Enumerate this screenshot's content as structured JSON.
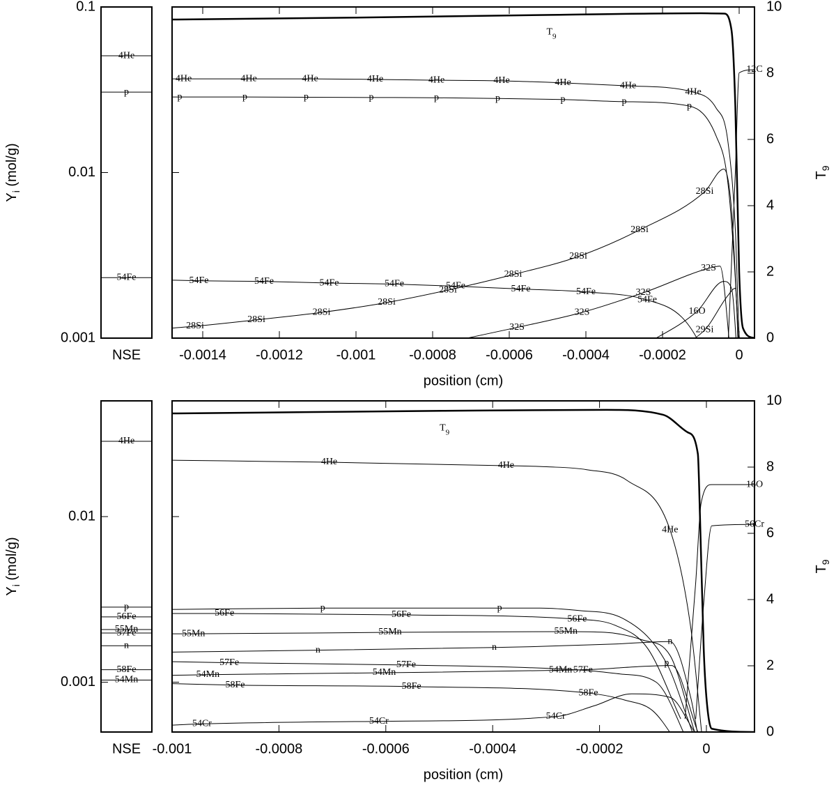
{
  "chart_data": [
    {
      "type": "line",
      "yscale": "log",
      "color": "#000000",
      "ylabel": [
        "Y",
        "i",
        " (mol/g)"
      ],
      "y2label": [
        "T",
        "9"
      ],
      "xlabel": "position (cm)",
      "xlim": [
        -0.00148,
        4e-05
      ],
      "xticks": [
        -0.0014,
        -0.0012,
        -0.001,
        -0.0008,
        -0.0006,
        -0.0004,
        -0.0002,
        0
      ],
      "ylim": [
        0.001,
        0.1
      ],
      "yticks": [
        0.001,
        0.01,
        0.1
      ],
      "y2lim": [
        0,
        10
      ],
      "y2ticks": [
        0,
        2,
        4,
        6,
        8,
        10
      ],
      "nse": {
        "label": "NSE",
        "species": [
          {
            "name": "4He",
            "value": 0.0507
          },
          {
            "name": "p",
            "value": 0.0306
          },
          {
            "name": "54Fe",
            "value": 0.00232
          }
        ]
      },
      "series": [
        {
          "name": [
            "T",
            "9"
          ],
          "axis": "y2",
          "x": [
            -0.00148,
            -0.001,
            -0.00049,
            -0.0001,
            -4e-05,
            -2e-05,
            -1e-05,
            0,
            1e-05,
            4e-05
          ],
          "values": [
            9.62,
            9.68,
            9.76,
            9.81,
            9.8,
            9.3,
            7,
            2,
            0.3,
            0
          ]
        },
        {
          "name": "4He",
          "x": [
            -0.00148,
            -0.00145,
            -0.00128,
            -0.00112,
            -0.00095,
            -0.00079,
            -0.00062,
            -0.00046,
            -0.00029,
            -0.00012,
            -6e-05,
            -3e-05,
            -1e-05,
            0,
            2e-05
          ],
          "values": [
            0.0368,
            0.0368,
            0.0368,
            0.0368,
            0.0365,
            0.0361,
            0.0358,
            0.0348,
            0.0334,
            0.0306,
            0.0245,
            0.0158,
            0.0045,
            0.00105,
            0.0005
          ]
        },
        {
          "name": "p",
          "x": [
            -0.00148,
            -0.00146,
            -0.00129,
            -0.00113,
            -0.00096,
            -0.00079,
            -0.00063,
            -0.00046,
            -0.0003,
            -0.00013,
            -6e-05,
            -3e-05,
            -1e-05,
            0
          ],
          "values": [
            0.0286,
            0.0286,
            0.0286,
            0.0285,
            0.0284,
            0.0283,
            0.028,
            0.0276,
            0.0268,
            0.0252,
            0.0166,
            0.0089,
            0.00228,
            0.0008
          ]
        },
        {
          "name": "54Fe",
          "x": [
            -0.00148,
            -0.00141,
            -0.00124,
            -0.00107,
            -0.0009,
            -0.00074,
            -0.00057,
            -0.0004,
            -0.00024,
            -0.00015,
            -0.0001,
            -7e-05
          ],
          "values": [
            0.00224,
            0.00222,
            0.0022,
            0.00215,
            0.00212,
            0.00206,
            0.00198,
            0.0019,
            0.0017,
            0.00134,
            0.0009,
            0.0006
          ]
        },
        {
          "name": "28Si",
          "x": [
            -0.00148,
            -0.00142,
            -0.00126,
            -0.00109,
            -0.00092,
            -0.00076,
            -0.00059,
            -0.00042,
            -0.00026,
            -9e-05,
            -4e-05,
            -2e-05,
            0
          ],
          "values": [
            0.00115,
            0.00118,
            0.00129,
            0.00143,
            0.00164,
            0.00195,
            0.00242,
            0.00311,
            0.0045,
            0.00766,
            0.0105,
            0.006,
            0.0008
          ]
        },
        {
          "name": "32S",
          "x": [
            -0.00071,
            -0.00058,
            -0.00041,
            -0.00025,
            -8e-05,
            -5e-05,
            -2e-05
          ],
          "values": [
            0.001,
            0.00116,
            0.00143,
            0.00188,
            0.00264,
            0.00272,
            0.0007
          ]
        },
        {
          "name": "12C",
          "x": [
            -3e-05,
            -1e-05,
            0,
            4e-05
          ],
          "values": [
            0.0008,
            0.01,
            0.04,
            0.0418
          ]
        },
        {
          "name": "16O",
          "x": [
            -0.00025,
            -0.00011,
            -4e-05,
            -2e-05,
            0
          ],
          "values": [
            0.0009,
            0.00145,
            0.0022,
            0.002,
            0.0005
          ]
        },
        {
          "name": "29Si",
          "x": [
            -0.0002,
            -9e-05,
            -3e-05,
            -1e-05,
            0
          ],
          "values": [
            0.0008,
            0.00112,
            0.0018,
            0.002,
            0.0006
          ]
        }
      ]
    },
    {
      "type": "line",
      "yscale": "log",
      "color": "#000000",
      "ylabel": [
        "Y",
        "i",
        " (mol/g)"
      ],
      "y2label": [
        "T",
        "9"
      ],
      "xlabel": "position (cm)",
      "xlim": [
        -0.001,
        9e-05
      ],
      "xticks": [
        -0.001,
        -0.0008,
        -0.0006,
        -0.0004,
        -0.0002,
        0
      ],
      "ylim": [
        0.0005,
        0.05
      ],
      "yticks": [
        0.001,
        0.01
      ],
      "y2lim": [
        0,
        10
      ],
      "y2ticks": [
        0,
        2,
        4,
        6,
        8,
        10
      ],
      "nse": {
        "label": "NSE",
        "species": [
          {
            "name": "4He",
            "value": 0.0285
          },
          {
            "name": "p",
            "value": 0.00284
          },
          {
            "name": "56Fe",
            "value": 0.00248
          },
          {
            "name": "55Mn",
            "value": 0.00208
          },
          {
            "name": "57Fe",
            "value": 0.00198
          },
          {
            "name": "n",
            "value": 0.00166
          },
          {
            "name": "58Fe",
            "value": 0.00119
          },
          {
            "name": "54Mn",
            "value": 0.00103
          }
        ]
      },
      "series": [
        {
          "name": [
            "T",
            "9"
          ],
          "axis": "y2",
          "x": [
            -0.001,
            -0.00075,
            -0.00049,
            -0.000186,
            -8.1e-05,
            -3.5e-05,
            -1.6e-05,
            -1.2e-05,
            -5e-06,
            0,
            1e-05,
            9e-05
          ],
          "values": [
            9.62,
            9.66,
            9.7,
            9.73,
            9.58,
            9.05,
            8.4,
            6.5,
            2.5,
            1.05,
            0.1,
            0
          ]
        },
        {
          "name": "4He",
          "x": [
            -0.001,
            -0.000706,
            -0.000375,
            -0.000299,
            -0.000224,
            -0.000148,
            -6.8e-05,
            -2.9e-05,
            -9e-06
          ],
          "values": [
            0.0219,
            0.0213,
            0.0203,
            0.02,
            0.0192,
            0.0165,
            0.0083,
            0.0021,
            0.0005
          ]
        },
        {
          "name": "p",
          "x": [
            -0.001,
            -0.000718,
            -0.000387,
            -0.000311,
            -0.000235,
            -0.000159,
            -7.45e-05,
            -3.5e-05,
            -1.6e-05
          ],
          "values": [
            0.00275,
            0.0028,
            0.0028,
            0.0028,
            0.0027,
            0.00245,
            0.0013,
            0.0006,
            0.0004
          ]
        },
        {
          "name": "56Fe",
          "x": [
            -0.001,
            -0.000902,
            -0.000571,
            -0.000242,
            -0.00017,
            -0.00011,
            -4.8e-05
          ],
          "values": [
            0.0026,
            0.0026,
            0.00255,
            0.0024,
            0.0022,
            0.0016,
            0.0006
          ]
        },
        {
          "name": "55Mn",
          "x": [
            -0.001,
            -0.00096,
            -0.000592,
            -0.000263,
            -0.00019,
            -0.00012,
            -6.8e-05,
            -2.2e-05
          ],
          "values": [
            0.00196,
            0.00196,
            0.002,
            0.00202,
            0.002,
            0.0018,
            0.00145,
            0.0005
          ]
        },
        {
          "name": "n",
          "x": [
            -0.001,
            -0.000727,
            -0.000397,
            -0.000322,
            -0.000246,
            -0.00017,
            -6.8e-05,
            -2.9e-05,
            -1.2e-05
          ],
          "values": [
            0.00152,
            0.00156,
            0.00162,
            0.00164,
            0.00167,
            0.0017,
            0.00176,
            0.0008,
            0.0004
          ]
        },
        {
          "name": "57Fe",
          "x": [
            -0.001,
            -0.000893,
            -0.000562,
            -0.000231,
            -0.00016,
            -9.4e-05,
            -2.9e-05
          ],
          "values": [
            0.00133,
            0.00131,
            0.00127,
            0.00118,
            0.00112,
            0.001,
            0.0004
          ]
        },
        {
          "name": "54Mn",
          "x": [
            -0.001,
            -0.000933,
            -0.000603,
            -0.000273,
            -0.0002,
            -0.00013,
            -6.5e-05,
            -1.6e-05
          ],
          "values": [
            0.0011,
            0.00111,
            0.00114,
            0.00118,
            0.0012,
            0.00124,
            0.00126,
            0.0005
          ]
        },
        {
          "name": "58Fe",
          "x": [
            -0.001,
            -0.000882,
            -0.000552,
            -0.000221,
            -0.000153,
            -0.0001,
            -4.8e-05
          ],
          "values": [
            0.00098,
            0.00096,
            0.00094,
            0.00086,
            0.00078,
            0.00067,
            0.0004
          ]
        },
        {
          "name": "54Cr",
          "x": [
            -0.001,
            -0.000944,
            -0.000613,
            -0.000282,
            -0.00021,
            -0.00014,
            -6.8e-05,
            -2.2e-05
          ],
          "values": [
            0.00055,
            0.00056,
            0.00058,
            0.00062,
            0.00072,
            0.00085,
            0.00081,
            0.0005
          ]
        },
        {
          "name": "16O",
          "x": [
            -4e-05,
            -2e-05,
            -1e-05,
            1e-05,
            9e-05
          ],
          "values": [
            0.0006,
            0.004,
            0.012,
            0.0156,
            0.0156
          ]
        },
        {
          "name": "56Cr",
          "x": [
            -2e-05,
            -5e-06,
            1e-05,
            9e-05
          ],
          "values": [
            0.0006,
            0.003,
            0.0088,
            0.00897
          ]
        }
      ]
    }
  ]
}
